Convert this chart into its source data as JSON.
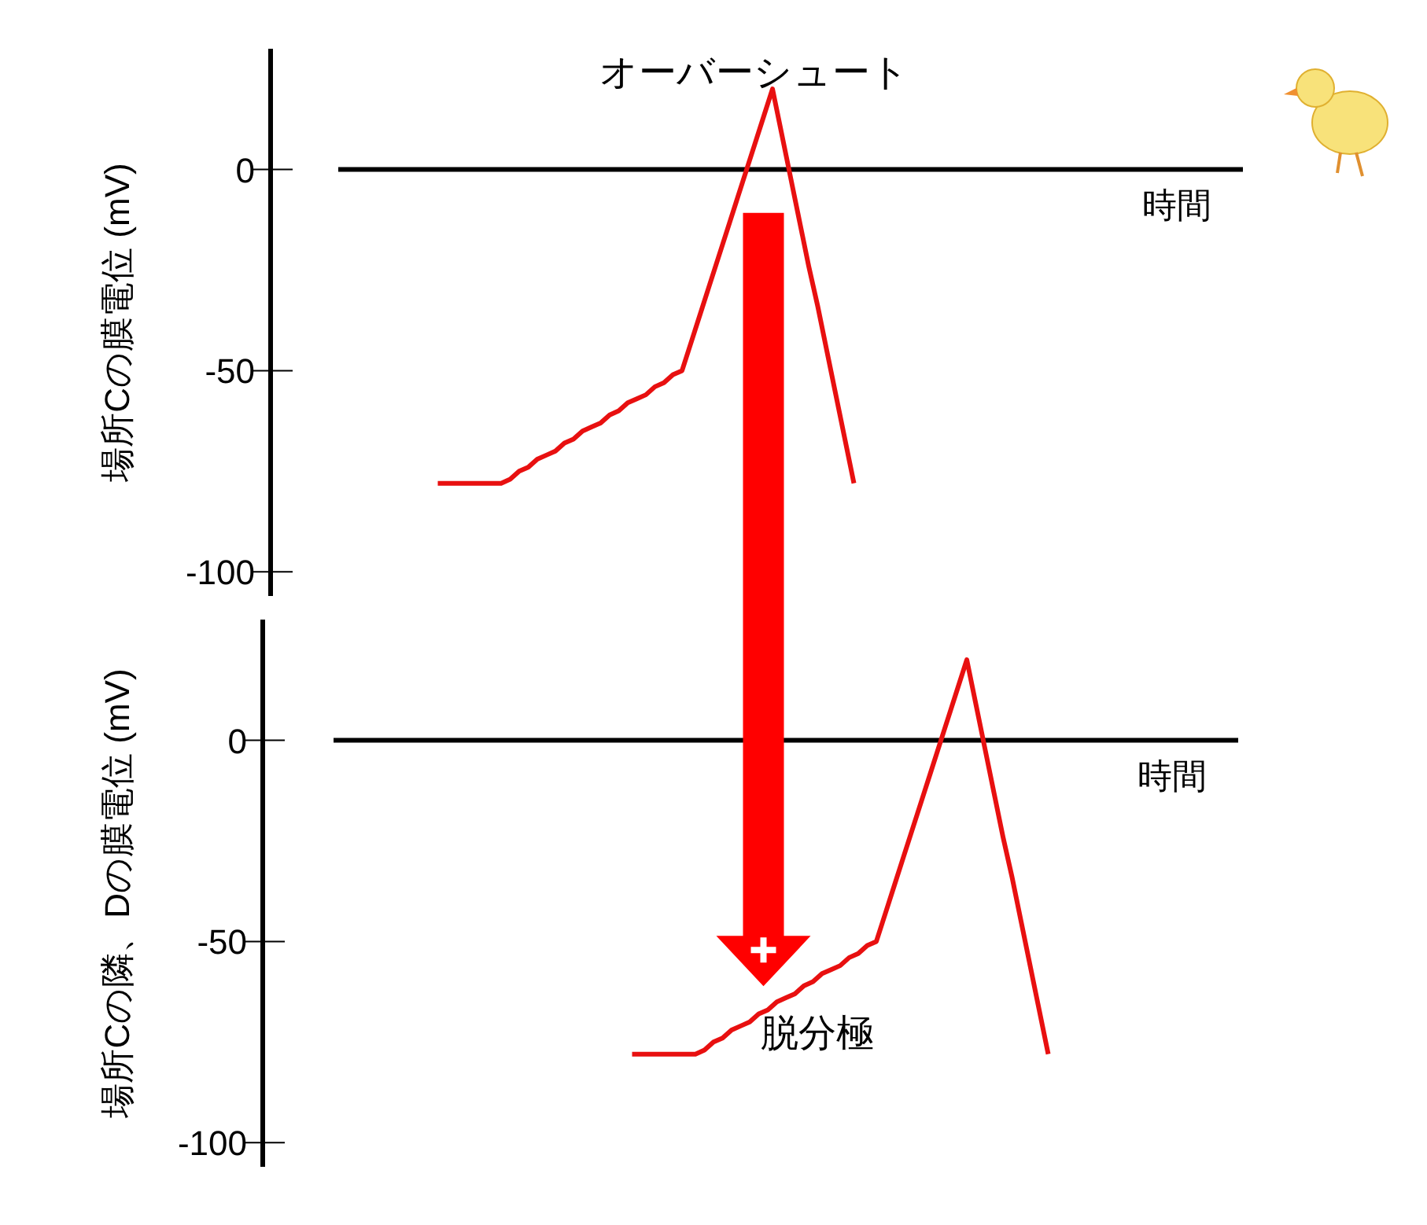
{
  "chart_data": [
    {
      "type": "line",
      "ylabel": "場所Cの膜電位 (mV)",
      "xlabel": "時間",
      "categories": [
        null,
        null,
        null,
        null,
        null,
        null,
        null,
        null,
        null,
        null,
        null,
        null,
        null,
        null,
        null,
        null,
        null,
        null,
        null,
        null,
        null,
        null,
        null,
        null,
        null,
        null,
        null,
        null,
        null,
        null,
        null,
        null,
        null,
        null,
        null,
        null,
        null,
        null,
        null,
        null,
        null,
        null,
        null,
        null,
        null,
        null,
        null,
        null,
        null,
        null,
        null,
        null,
        null,
        null,
        null,
        null,
        null,
        null,
        null,
        null,
        null,
        null,
        null,
        null,
        null,
        null,
        null,
        null,
        null,
        null,
        null,
        null,
        null,
        null,
        null,
        null,
        null,
        null,
        null,
        null,
        null,
        null,
        null,
        null,
        null,
        null,
        null,
        null,
        null,
        null,
        null,
        null,
        null,
        null,
        null,
        null,
        null,
        null,
        null,
        null,
        null
      ],
      "ylim": [
        -106,
        30
      ],
      "yticks": [
        0,
        -50,
        -100
      ],
      "tick_labels": "y",
      "series": [
        {
          "color": "#e81010",
          "values": [
            null,
            null,
            null,
            null,
            null,
            null,
            null,
            null,
            null,
            null,
            null,
            -78,
            -78,
            -78,
            -78,
            -78,
            -78,
            -78,
            -78,
            -77,
            -75,
            -74,
            -72,
            -71,
            -70,
            -68,
            -67,
            -65,
            -64,
            -63,
            -61,
            -60,
            -58,
            -57,
            -56,
            -54,
            -53,
            -51,
            -50,
            -43,
            -36,
            -29,
            -22,
            -15,
            -8,
            -1,
            6,
            13,
            20,
            9,
            -2,
            -13,
            -24,
            -34,
            -45,
            -56,
            -67,
            -78,
            null,
            null,
            null,
            null,
            null,
            null,
            null,
            null,
            null,
            null,
            null,
            null,
            null,
            null,
            null,
            null,
            null,
            null,
            null,
            null,
            null,
            null,
            null,
            null,
            null,
            null,
            null,
            null,
            null,
            null,
            null,
            null,
            null,
            null,
            null,
            null,
            null,
            null,
            null,
            null,
            null,
            null,
            null
          ]
        }
      ],
      "annotations": [
        "オーバーシュート"
      ]
    },
    {
      "type": "line",
      "ylabel": "場所Cの隣、Dの膜電位 (mV)",
      "xlabel": "時間",
      "categories": [
        null,
        null,
        null,
        null,
        null,
        null,
        null,
        null,
        null,
        null,
        null,
        null,
        null,
        null,
        null,
        null,
        null,
        null,
        null,
        null,
        null,
        null,
        null,
        null,
        null,
        null,
        null,
        null,
        null,
        null,
        null,
        null,
        null,
        null,
        null,
        null,
        null,
        null,
        null,
        null,
        null,
        null,
        null,
        null,
        null,
        null,
        null,
        null,
        null,
        null,
        null,
        null,
        null,
        null,
        null,
        null,
        null,
        null,
        null,
        null,
        null,
        null,
        null,
        null,
        null,
        null,
        null,
        null,
        null,
        null,
        null,
        null,
        null,
        null,
        null,
        null,
        null,
        null,
        null,
        null,
        null,
        null,
        null,
        null,
        null,
        null,
        null,
        null,
        null,
        null,
        null,
        null,
        null,
        null,
        null,
        null,
        null,
        null,
        null,
        null,
        null
      ],
      "ylim": [
        -106,
        30
      ],
      "yticks": [
        0,
        -50,
        -100
      ],
      "tick_labels": "y",
      "series": [
        {
          "color": "#e81010",
          "values": [
            null,
            null,
            null,
            null,
            null,
            null,
            null,
            null,
            null,
            null,
            null,
            null,
            null,
            null,
            null,
            null,
            null,
            null,
            null,
            null,
            null,
            null,
            null,
            null,
            null,
            null,
            null,
            null,
            null,
            null,
            null,
            null,
            null,
            -78,
            -78,
            -78,
            -78,
            -78,
            -78,
            -78,
            -78,
            -77,
            -75,
            -74,
            -72,
            -71,
            -70,
            -68,
            -67,
            -65,
            -64,
            -63,
            -61,
            -60,
            -58,
            -57,
            -56,
            -54,
            -53,
            -51,
            -50,
            -43,
            -36,
            -29,
            -22,
            -15,
            -8,
            -1,
            6,
            13,
            20,
            9,
            -2,
            -13,
            -24,
            -34,
            -45,
            -56,
            -67,
            -78,
            null,
            null,
            null,
            null,
            null,
            null,
            null,
            null,
            null,
            null,
            null,
            null,
            null,
            null,
            null,
            null,
            null,
            null,
            null,
            null,
            null
          ]
        }
      ],
      "annotations": [
        "脱分極"
      ]
    }
  ]
}
